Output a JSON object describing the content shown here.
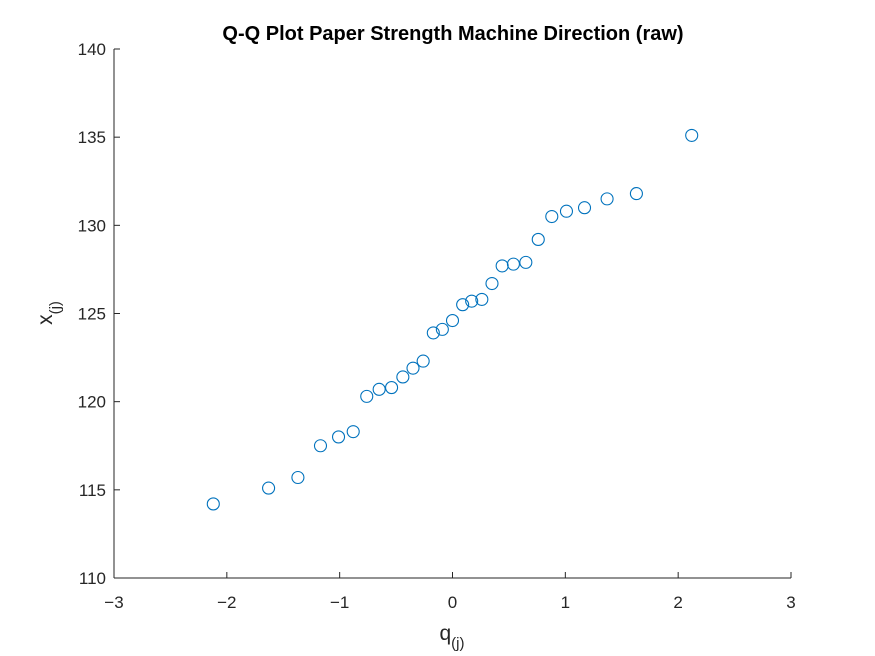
{
  "chart_data": {
    "type": "scatter",
    "title": "Q-Q Plot Paper Strength Machine Direction (raw)",
    "xlabel": {
      "main": "q",
      "sub": "(j)"
    },
    "ylabel": {
      "main": "x",
      "sub": "(j)"
    },
    "xlim": [
      -3,
      3
    ],
    "ylim": [
      110,
      140
    ],
    "xticks": [
      -3,
      -2,
      -1,
      0,
      1,
      2,
      3
    ],
    "yticks": [
      110,
      115,
      120,
      125,
      130,
      135,
      140
    ],
    "marker": "circle",
    "grid": false,
    "color": "#0072BD",
    "x": [
      -2.12,
      -1.63,
      -1.37,
      -1.17,
      -1.01,
      -0.88,
      -0.76,
      -0.65,
      -0.54,
      -0.44,
      -0.35,
      -0.26,
      -0.17,
      -0.09,
      0.0,
      0.09,
      0.17,
      0.26,
      0.35,
      0.44,
      0.54,
      0.65,
      0.76,
      0.88,
      1.01,
      1.17,
      1.37,
      1.63,
      2.12
    ],
    "y": [
      114.2,
      115.1,
      115.7,
      117.5,
      118.0,
      118.3,
      120.3,
      120.7,
      120.8,
      121.4,
      121.9,
      122.3,
      123.9,
      124.1,
      124.6,
      125.5,
      125.7,
      125.8,
      126.7,
      127.7,
      127.8,
      127.9,
      129.2,
      130.5,
      130.8,
      131.0,
      131.5,
      131.8,
      135.1
    ]
  }
}
